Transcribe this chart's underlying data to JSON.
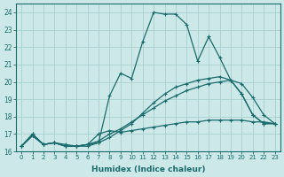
{
  "xlabel": "Humidex (Indice chaleur)",
  "xlim": [
    -0.5,
    23.5
  ],
  "ylim": [
    16,
    24.5
  ],
  "yticks": [
    16,
    17,
    18,
    19,
    20,
    21,
    22,
    23,
    24
  ],
  "xticks": [
    0,
    1,
    2,
    3,
    4,
    5,
    6,
    7,
    8,
    9,
    10,
    11,
    12,
    13,
    14,
    15,
    16,
    17,
    18,
    19,
    20,
    21,
    22,
    23
  ],
  "bg_color": "#cce8e8",
  "grid_color": "#aacfcf",
  "line_color": "#1a6b6b",
  "lines": [
    {
      "x": [
        0,
        1,
        2,
        3,
        4,
        5,
        6,
        7,
        8,
        9,
        10,
        11,
        12,
        13,
        14,
        15,
        16,
        17,
        18,
        19,
        20,
        21,
        22,
        23
      ],
      "y": [
        16.3,
        17.0,
        16.4,
        16.5,
        16.4,
        16.3,
        16.3,
        16.5,
        19.2,
        20.5,
        20.2,
        22.3,
        24.0,
        23.9,
        23.9,
        23.3,
        21.2,
        22.6,
        21.4,
        20.1,
        19.3,
        18.1,
        17.6,
        17.6
      ]
    },
    {
      "x": [
        0,
        1,
        2,
        3,
        4,
        5,
        6,
        7,
        8,
        9,
        10,
        11,
        12,
        13,
        14,
        15,
        16,
        17,
        18,
        19,
        20,
        21,
        22,
        23
      ],
      "y": [
        16.3,
        16.9,
        16.4,
        16.5,
        16.3,
        16.3,
        16.4,
        16.5,
        16.8,
        17.2,
        17.6,
        18.2,
        18.8,
        19.3,
        19.7,
        19.9,
        20.1,
        20.2,
        20.3,
        20.1,
        19.3,
        18.1,
        17.6,
        17.6
      ]
    },
    {
      "x": [
        0,
        1,
        2,
        3,
        4,
        5,
        6,
        7,
        8,
        9,
        10,
        11,
        12,
        13,
        14,
        15,
        16,
        17,
        18,
        19,
        20,
        21,
        22,
        23
      ],
      "y": [
        16.3,
        16.9,
        16.4,
        16.5,
        16.3,
        16.3,
        16.4,
        16.6,
        17.0,
        17.3,
        17.7,
        18.1,
        18.5,
        18.9,
        19.2,
        19.5,
        19.7,
        19.9,
        20.0,
        20.1,
        19.9,
        19.1,
        18.1,
        17.6
      ]
    },
    {
      "x": [
        0,
        1,
        2,
        3,
        4,
        5,
        6,
        7,
        8,
        9,
        10,
        11,
        12,
        13,
        14,
        15,
        16,
        17,
        18,
        19,
        20,
        21,
        22,
        23
      ],
      "y": [
        16.3,
        17.0,
        16.4,
        16.5,
        16.3,
        16.3,
        16.4,
        17.0,
        17.2,
        17.1,
        17.2,
        17.3,
        17.4,
        17.5,
        17.6,
        17.7,
        17.7,
        17.8,
        17.8,
        17.8,
        17.8,
        17.7,
        17.7,
        17.6
      ]
    }
  ]
}
